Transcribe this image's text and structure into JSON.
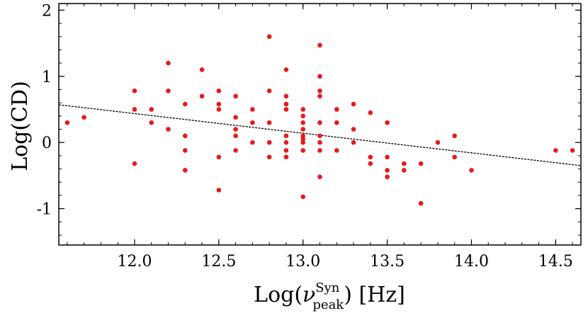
{
  "chart_data": {
    "type": "scatter",
    "xlabel": "Log(ν_peak^Syn) [Hz]",
    "xlabel_parts": {
      "prefix": "Log(",
      "nu": "ν",
      "sup": "Syn",
      "sub": "peak",
      "suffix": ") [Hz]"
    },
    "ylabel": "Log(CD)",
    "xlim": [
      11.55,
      14.65
    ],
    "ylim": [
      -1.55,
      2.1
    ],
    "xticks": [
      12.0,
      12.5,
      13.0,
      13.5,
      14.0,
      14.5
    ],
    "xtick_labels": [
      "12.0",
      "12.5",
      "13.0",
      "13.5",
      "14.0",
      "14.5"
    ],
    "yticks": [
      -1,
      0,
      1,
      2
    ],
    "ytick_labels": [
      "-1",
      "0",
      "1",
      "2"
    ],
    "grid": false,
    "point_color": "#e8191b",
    "fit_line_color": "#000000",
    "fit_line": {
      "x": [
        11.55,
        14.65
      ],
      "y": [
        0.57,
        -0.35
      ]
    },
    "x": [
      11.6,
      11.7,
      12.0,
      12.0,
      12.0,
      12.1,
      12.1,
      12.2,
      12.2,
      12.2,
      12.3,
      12.3,
      12.3,
      12.3,
      12.4,
      12.4,
      12.5,
      12.5,
      12.5,
      12.5,
      12.5,
      12.6,
      12.6,
      12.6,
      12.6,
      12.6,
      12.7,
      12.7,
      12.7,
      12.8,
      12.8,
      12.8,
      12.8,
      12.8,
      12.9,
      12.9,
      12.9,
      12.9,
      12.9,
      12.9,
      12.9,
      12.9,
      13.0,
      13.0,
      13.0,
      13.0,
      13.0,
      13.0,
      13.0,
      13.0,
      13.0,
      13.1,
      13.1,
      13.1,
      13.1,
      13.1,
      13.1,
      13.1,
      13.1,
      13.1,
      13.2,
      13.2,
      13.2,
      13.3,
      13.3,
      13.3,
      13.4,
      13.4,
      13.4,
      13.5,
      13.5,
      13.5,
      13.5,
      13.6,
      13.6,
      13.7,
      13.7,
      13.8,
      13.9,
      13.9,
      14.0,
      14.5,
      14.6
    ],
    "y": [
      0.3,
      0.38,
      0.78,
      0.5,
      -0.32,
      0.5,
      0.3,
      1.2,
      0.78,
      0.2,
      0.58,
      0.1,
      -0.12,
      -0.42,
      1.1,
      0.7,
      0.78,
      0.58,
      0.5,
      -0.22,
      -0.72,
      0.7,
      0.38,
      0.2,
      0.1,
      -0.12,
      0.5,
      0.3,
      0.0,
      1.6,
      0.78,
      0.3,
      0.0,
      -0.22,
      1.1,
      0.7,
      0.58,
      0.5,
      0.1,
      0.0,
      -0.12,
      -0.22,
      0.5,
      0.4,
      0.3,
      0.2,
      0.1,
      0.05,
      0.0,
      -0.12,
      -0.82,
      1.47,
      1.0,
      0.78,
      0.7,
      0.3,
      0.1,
      0.0,
      -0.12,
      -0.52,
      0.5,
      0.3,
      -0.12,
      0.58,
      0.2,
      0.0,
      0.45,
      -0.22,
      -0.32,
      0.3,
      -0.22,
      -0.42,
      -0.52,
      -0.32,
      -0.42,
      -0.32,
      -0.92,
      0.0,
      0.1,
      -0.22,
      -0.42,
      -0.12,
      -0.12
    ]
  }
}
